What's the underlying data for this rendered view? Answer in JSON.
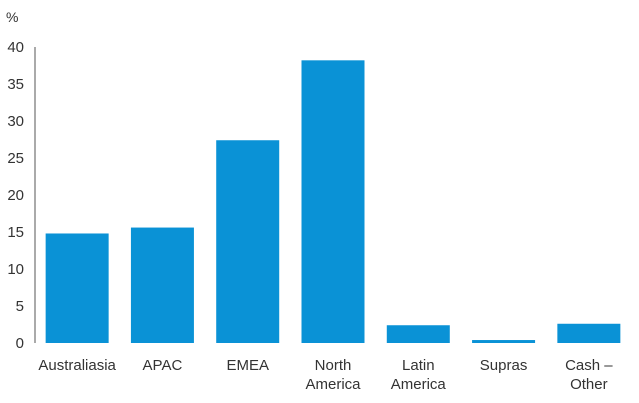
{
  "chart_data": {
    "type": "bar",
    "unit_label": "%",
    "categories": [
      [
        "Australiasia"
      ],
      [
        "APAC"
      ],
      [
        "EMEA"
      ],
      [
        "North",
        "America"
      ],
      [
        "Latin",
        "America"
      ],
      [
        "Supras"
      ],
      [
        "Cash –",
        "Other"
      ]
    ],
    "values": [
      14.8,
      15.6,
      27.4,
      38.2,
      2.4,
      0.4,
      2.6
    ],
    "ylim": [
      0,
      40
    ],
    "yticks": [
      0,
      5,
      10,
      15,
      20,
      25,
      30,
      35,
      40
    ],
    "grid": false,
    "bar_color": "#0a92d6",
    "axis_color": "#555555"
  }
}
